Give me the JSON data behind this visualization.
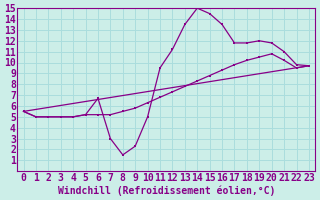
{
  "xlabel": "Windchill (Refroidissement éolien,°C)",
  "background_color": "#cceee8",
  "grid_color": "#aadddd",
  "line_color": "#880088",
  "xlim": [
    -0.5,
    23.5
  ],
  "ylim": [
    0,
    15
  ],
  "xticks": [
    0,
    1,
    2,
    3,
    4,
    5,
    6,
    7,
    8,
    9,
    10,
    11,
    12,
    13,
    14,
    15,
    16,
    17,
    18,
    19,
    20,
    21,
    22,
    23
  ],
  "yticks": [
    1,
    2,
    3,
    4,
    5,
    6,
    7,
    8,
    9,
    10,
    11,
    12,
    13,
    14,
    15
  ],
  "line1_x": [
    0,
    1,
    2,
    3,
    4,
    5,
    6,
    7,
    8,
    9,
    10,
    11,
    12,
    13,
    14,
    15,
    16,
    17,
    18,
    19,
    20,
    21,
    22,
    23
  ],
  "line1_y": [
    5.5,
    5.0,
    5.0,
    5.0,
    5.0,
    5.2,
    6.7,
    3.0,
    1.5,
    2.3,
    5.0,
    9.5,
    11.2,
    13.5,
    15.0,
    14.5,
    13.5,
    11.8,
    11.8,
    12.0,
    11.8,
    11.0,
    9.8,
    9.7
  ],
  "line2_x": [
    0,
    23
  ],
  "line2_y": [
    5.5,
    9.7
  ],
  "line3_x": [
    0,
    1,
    2,
    3,
    4,
    5,
    6,
    7,
    8,
    9,
    10,
    11,
    12,
    13,
    14,
    15,
    16,
    17,
    18,
    19,
    20,
    21,
    22,
    23
  ],
  "line3_y": [
    5.5,
    5.0,
    5.0,
    5.0,
    5.0,
    5.2,
    5.2,
    5.2,
    5.5,
    5.8,
    6.3,
    6.8,
    7.3,
    7.8,
    8.3,
    8.8,
    9.3,
    9.8,
    10.2,
    10.5,
    10.8,
    10.2,
    9.5,
    9.7
  ],
  "fontsize_xlabel": 7,
  "fontsize_ticks": 7
}
